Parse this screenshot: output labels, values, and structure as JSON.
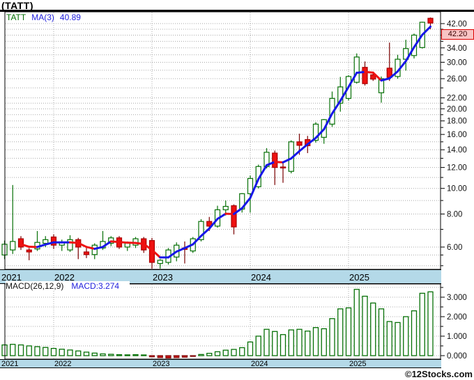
{
  "header": {
    "title": "(TATT)"
  },
  "watermark": "©12Stocks.com",
  "chart_data": {
    "type": "candlestick",
    "symbol": "TATT",
    "timeframe": "monthly",
    "scale": "log",
    "title": "(TATT)",
    "legend": {
      "symbol": "TATT",
      "ma_label": "MA(3)",
      "ma_value": "40.89"
    },
    "macd_legend": {
      "label": "MACD(26,12,9)",
      "value": "MACD:3.274"
    },
    "last_price_label": "42.20",
    "price_axis": {
      "labels": [
        42,
        38,
        34,
        30,
        26,
        22,
        20,
        18,
        16,
        14,
        12,
        10,
        8,
        6
      ],
      "minor_ticks": [
        40,
        36,
        32,
        28,
        24,
        21,
        19,
        17,
        15,
        13,
        11,
        9,
        7,
        5.6,
        5.1
      ]
    },
    "macd_axis": {
      "labels": [
        3,
        2,
        1,
        0
      ],
      "minor_ticks": [
        3.5,
        2.5,
        1.5,
        0.5
      ]
    },
    "years": [
      {
        "label": "2021",
        "index": 0
      },
      {
        "label": "2022",
        "index": 6
      },
      {
        "label": "2023",
        "index": 18
      },
      {
        "label": "2024",
        "index": 30
      },
      {
        "label": "2025",
        "index": 42
      }
    ],
    "series": [
      {
        "d": "2021-07",
        "o": 5.6,
        "h": 6.35,
        "l": 5.4,
        "c": 6.15,
        "macd": 0.55
      },
      {
        "d": "2021-08",
        "o": 5.85,
        "h": 10.3,
        "l": 5.65,
        "c": 6.3,
        "macd": 0.58
      },
      {
        "d": "2021-09",
        "o": 6.45,
        "h": 6.6,
        "l": 5.85,
        "c": 6.0,
        "macd": 0.55
      },
      {
        "d": "2021-10",
        "o": 5.85,
        "h": 5.95,
        "l": 5.35,
        "c": 5.75,
        "macd": 0.5
      },
      {
        "d": "2021-11",
        "o": 5.9,
        "h": 6.9,
        "l": 5.8,
        "c": 6.25,
        "macd": 0.46
      },
      {
        "d": "2021-12",
        "o": 6.2,
        "h": 6.6,
        "l": 6.0,
        "c": 6.4,
        "macd": 0.42
      },
      {
        "d": "2022-01",
        "o": 6.55,
        "h": 6.7,
        "l": 5.9,
        "c": 6.1,
        "macd": 0.37
      },
      {
        "d": "2022-02",
        "o": 6.1,
        "h": 6.4,
        "l": 5.8,
        "c": 6.25,
        "macd": 0.33
      },
      {
        "d": "2022-03",
        "o": 5.85,
        "h": 6.65,
        "l": 5.75,
        "c": 6.4,
        "macd": 0.29
      },
      {
        "d": "2022-04",
        "o": 6.4,
        "h": 6.5,
        "l": 5.4,
        "c": 6.0,
        "macd": 0.24
      },
      {
        "d": "2022-05",
        "o": 5.75,
        "h": 5.95,
        "l": 5.45,
        "c": 5.62,
        "macd": 0.18
      },
      {
        "d": "2022-06",
        "o": 5.62,
        "h": 6.2,
        "l": 5.4,
        "c": 6.1,
        "macd": 0.13
      },
      {
        "d": "2022-07",
        "o": 5.95,
        "h": 6.9,
        "l": 5.85,
        "c": 6.3,
        "macd": 0.09
      },
      {
        "d": "2022-08",
        "o": 6.2,
        "h": 6.6,
        "l": 6.05,
        "c": 6.5,
        "macd": 0.07
      },
      {
        "d": "2022-09",
        "o": 6.5,
        "h": 6.6,
        "l": 5.9,
        "c": 6.0,
        "macd": 0.05
      },
      {
        "d": "2022-10",
        "o": 6.0,
        "h": 6.3,
        "l": 5.8,
        "c": 6.2,
        "macd": 0.04
      },
      {
        "d": "2022-11",
        "o": 6.1,
        "h": 6.55,
        "l": 5.95,
        "c": 6.45,
        "macd": 0.05
      },
      {
        "d": "2022-12",
        "o": 6.45,
        "h": 6.55,
        "l": 5.7,
        "c": 5.85,
        "macd": 0.03
      },
      {
        "d": "2023-01",
        "o": 6.35,
        "h": 6.5,
        "l": 4.95,
        "c": 5.25,
        "macd": -0.06
      },
      {
        "d": "2023-02",
        "o": 5.2,
        "h": 5.4,
        "l": 4.92,
        "c": 5.35,
        "macd": -0.1
      },
      {
        "d": "2023-03",
        "o": 5.25,
        "h": 5.95,
        "l": 5.15,
        "c": 5.85,
        "macd": -0.12
      },
      {
        "d": "2023-04",
        "o": 5.5,
        "h": 6.25,
        "l": 5.3,
        "c": 6.1,
        "macd": -0.1
      },
      {
        "d": "2023-05",
        "o": 5.95,
        "h": 6.3,
        "l": 5.2,
        "c": 5.88,
        "macd": -0.08
      },
      {
        "d": "2023-06",
        "o": 5.8,
        "h": 6.55,
        "l": 5.7,
        "c": 6.45,
        "macd": -0.04
      },
      {
        "d": "2023-07",
        "o": 6.4,
        "h": 7.65,
        "l": 6.3,
        "c": 7.5,
        "macd": 0.06
      },
      {
        "d": "2023-08",
        "o": 7.5,
        "h": 7.8,
        "l": 6.9,
        "c": 7.2,
        "macd": 0.12
      },
      {
        "d": "2023-09",
        "o": 7.2,
        "h": 8.6,
        "l": 7.1,
        "c": 8.3,
        "macd": 0.2
      },
      {
        "d": "2023-10",
        "o": 8.3,
        "h": 9.0,
        "l": 7.9,
        "c": 8.55,
        "macd": 0.28
      },
      {
        "d": "2023-11",
        "o": 8.6,
        "h": 8.7,
        "l": 6.7,
        "c": 7.15,
        "macd": 0.32
      },
      {
        "d": "2023-12",
        "o": 8.35,
        "h": 9.6,
        "l": 8.1,
        "c": 9.55,
        "macd": 0.41
      },
      {
        "d": "2024-01",
        "o": 9.55,
        "h": 11.2,
        "l": 8.1,
        "c": 10.9,
        "macd": 0.7
      },
      {
        "d": "2024-02",
        "o": 10.15,
        "h": 12.3,
        "l": 10.0,
        "c": 12.1,
        "macd": 1.0
      },
      {
        "d": "2024-03",
        "o": 12.1,
        "h": 14.2,
        "l": 11.9,
        "c": 13.7,
        "macd": 1.35
      },
      {
        "d": "2024-04",
        "o": 13.6,
        "h": 13.9,
        "l": 10.3,
        "c": 12.0,
        "macd": 1.24
      },
      {
        "d": "2024-05",
        "o": 12.05,
        "h": 12.6,
        "l": 10.5,
        "c": 11.95,
        "macd": 1.08
      },
      {
        "d": "2024-06",
        "o": 11.6,
        "h": 15.2,
        "l": 11.4,
        "c": 15.0,
        "macd": 1.32
      },
      {
        "d": "2024-07",
        "o": 15.0,
        "h": 16.1,
        "l": 13.4,
        "c": 14.55,
        "macd": 1.35
      },
      {
        "d": "2024-08",
        "o": 15.3,
        "h": 15.8,
        "l": 13.6,
        "c": 14.5,
        "macd": 1.26
      },
      {
        "d": "2024-09",
        "o": 15.2,
        "h": 17.8,
        "l": 14.9,
        "c": 17.5,
        "macd": 1.44
      },
      {
        "d": "2024-10",
        "o": 15.6,
        "h": 18.3,
        "l": 14.75,
        "c": 18.2,
        "macd": 1.38
      },
      {
        "d": "2024-11",
        "o": 17.5,
        "h": 23.25,
        "l": 17.1,
        "c": 21.9,
        "macd": 1.9
      },
      {
        "d": "2024-12",
        "o": 21.0,
        "h": 26.4,
        "l": 19.5,
        "c": 24.2,
        "macd": 2.4
      },
      {
        "d": "2025-01",
        "o": 21.9,
        "h": 26.8,
        "l": 21.5,
        "c": 26.5,
        "macd": 2.45
      },
      {
        "d": "2025-02",
        "o": 25.2,
        "h": 32.4,
        "l": 24.9,
        "c": 31.4,
        "macd": 3.4
      },
      {
        "d": "2025-03",
        "o": 28.7,
        "h": 30.2,
        "l": 24.5,
        "c": 24.9,
        "macd": 3.05
      },
      {
        "d": "2025-04",
        "o": 26.9,
        "h": 27.5,
        "l": 25.5,
        "c": 25.9,
        "macd": 2.7
      },
      {
        "d": "2025-05",
        "o": 23.0,
        "h": 26.5,
        "l": 21.1,
        "c": 26.0,
        "macd": 2.4
      },
      {
        "d": "2025-06",
        "o": 28.5,
        "h": 35.6,
        "l": 25.5,
        "c": 26.3,
        "macd": 1.75
      },
      {
        "d": "2025-07",
        "o": 26.5,
        "h": 32.0,
        "l": 26.0,
        "c": 30.8,
        "macd": 1.7
      },
      {
        "d": "2025-08",
        "o": 30.8,
        "h": 36.5,
        "l": 27.9,
        "c": 33.8,
        "macd": 2.0
      },
      {
        "d": "2025-09",
        "o": 31.8,
        "h": 38.5,
        "l": 31.0,
        "c": 38.0,
        "macd": 2.3
      },
      {
        "d": "2025-10",
        "o": 34.1,
        "h": 42.7,
        "l": 33.8,
        "c": 42.5,
        "macd": 3.2
      },
      {
        "d": "2025-11",
        "o": 44.0,
        "h": 44.3,
        "l": 40.0,
        "c": 42.2,
        "macd": 3.274
      }
    ],
    "colors": {
      "up": "#067006",
      "down_fill": "#ee1111",
      "down_border": "#aa0000",
      "down_wick": "#7a0000",
      "ma_up": "#1717e8",
      "ma_down": "#ee1111",
      "band": "#b4d9e8",
      "grid": "#a8a8a8",
      "frame": "#000000",
      "tag_bg": "#f8c4c4",
      "tag_border": "#dd0000",
      "legend_green": "#067006",
      "legend_blue": "#2222dd",
      "macd_neg": "#cc1111"
    }
  }
}
